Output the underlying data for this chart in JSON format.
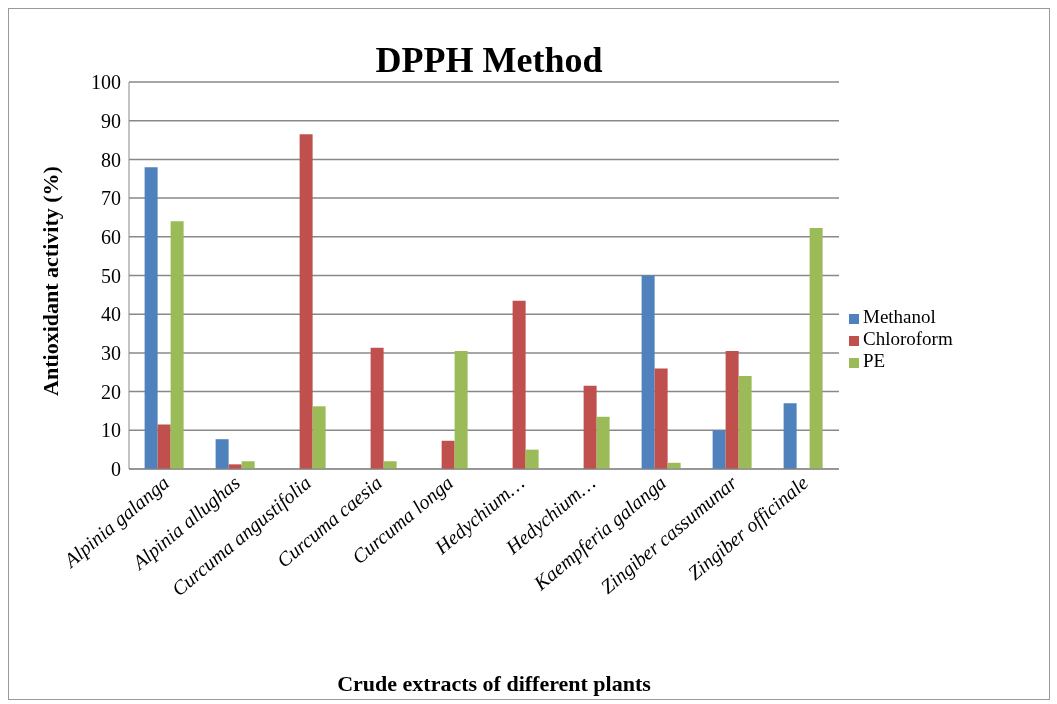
{
  "chart_data": {
    "type": "bar",
    "title": "DPPH Method",
    "xlabel": "Crude extracts of different plants",
    "ylabel": "Antioxidant activity (%)",
    "categories": [
      "Alpinia galanga",
      "Alpinia allughas",
      "Curcuma angustifolia",
      "Curcuma caesia",
      "Curcuma longa",
      "Hedychium…",
      "Hedychium…",
      "Kaempferia galanga",
      "Zingiber cassumunar",
      "Zingiber officinale"
    ],
    "series": [
      {
        "name": "Methanol",
        "color": "#4f81bd",
        "values": [
          78,
          7.7,
          null,
          null,
          null,
          null,
          null,
          50,
          10,
          17
        ]
      },
      {
        "name": "Chloroform",
        "color": "#c0504d",
        "values": [
          11.5,
          1.2,
          86.5,
          31.3,
          7.3,
          43.5,
          21.5,
          26,
          30.5,
          null
        ]
      },
      {
        "name": "PE",
        "color": "#9bbb59",
        "values": [
          64,
          2,
          16.2,
          2,
          30.5,
          5,
          13.5,
          1.6,
          24,
          62.3
        ]
      }
    ],
    "ylim": [
      0,
      100
    ],
    "yticks": [
      0,
      10,
      20,
      30,
      40,
      50,
      60,
      70,
      80,
      90,
      100
    ],
    "grid": "y",
    "legend": "right"
  }
}
